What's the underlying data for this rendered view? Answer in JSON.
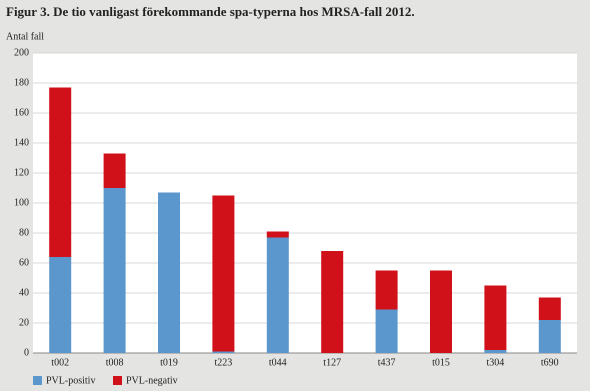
{
  "chart_data": {
    "type": "stacked_bar",
    "title": "Figur 3. De tio vanligast förekommande spa-typerna hos MRSA-fall 2012.",
    "y_label": "Antal fall",
    "categories": [
      "t002",
      "t008",
      "t019",
      "t223",
      "t044",
      "t127",
      "t437",
      "t015",
      "t304",
      "t690"
    ],
    "series": [
      {
        "name": "PVL-positiv",
        "color": "#5b97cc",
        "values": [
          64,
          110,
          107,
          1,
          77,
          0,
          29,
          0,
          2,
          22
        ]
      },
      {
        "name": "PVL-negativ",
        "color": "#d0111a",
        "values": [
          113,
          23,
          0,
          104,
          4,
          68,
          26,
          55,
          43,
          15
        ]
      }
    ],
    "ylim": [
      0,
      200
    ],
    "yticks": [
      0,
      20,
      40,
      60,
      80,
      100,
      120,
      140,
      160,
      180,
      200
    ],
    "grid": true,
    "legend": "bottom-left"
  }
}
